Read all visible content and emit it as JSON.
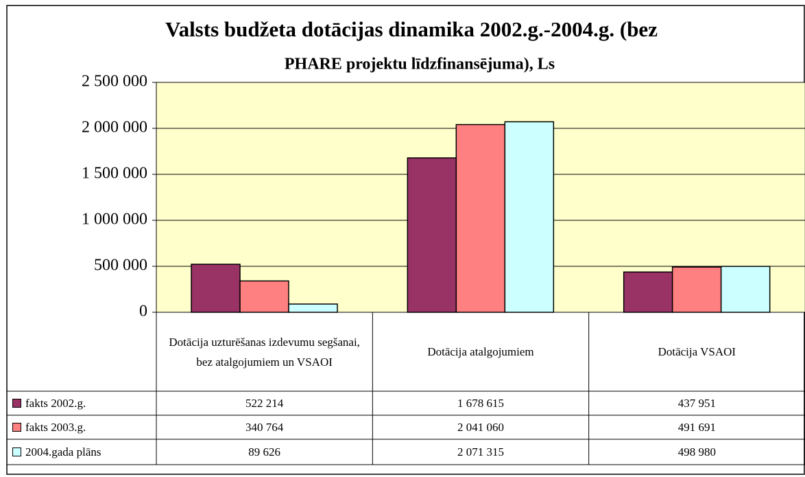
{
  "chart_data": {
    "type": "bar",
    "title": [
      "Valsts budžeta dotācijas dinamika 2002.g.-2004.g. (bez",
      "PHARE projektu līdzfinansējuma), Ls"
    ],
    "categories": [
      "Dotācija uzturēšanas izdevumu segšanai, bez atalgojumiem un VSAOI",
      "Dotācija atalgojumiem",
      "Dotācija VSAOI"
    ],
    "series": [
      {
        "name": "fakts 2002.g.",
        "color": "#993366",
        "values": [
          522214,
          1678615,
          437951
        ],
        "value_labels": [
          "522 214",
          "1 678 615",
          "437 951"
        ]
      },
      {
        "name": "fakts 2003.g.",
        "color": "#ff8080",
        "values": [
          340764,
          2041060,
          491691
        ],
        "value_labels": [
          "340 764",
          "2 041 060",
          "491 691"
        ]
      },
      {
        "name": "2004.gada plāns",
        "color": "#ccffff",
        "values": [
          89626,
          2071315,
          498980
        ],
        "value_labels": [
          "89 626",
          "2 071 315",
          "498 980"
        ]
      }
    ],
    "ylim": [
      0,
      2500000
    ],
    "yticks": [
      0,
      {
        "value": 500000,
        "label": "500 000"
      },
      {
        "value": 1000000,
        "label": "1 000 000"
      },
      {
        "value": 1500000,
        "label": "1 500 000"
      },
      {
        "value": 2000000,
        "label": "2 000 000"
      },
      {
        "value": 2500000,
        "label": "2 500 000"
      }
    ],
    "grid": true,
    "plot_background": "#ffffcc"
  }
}
